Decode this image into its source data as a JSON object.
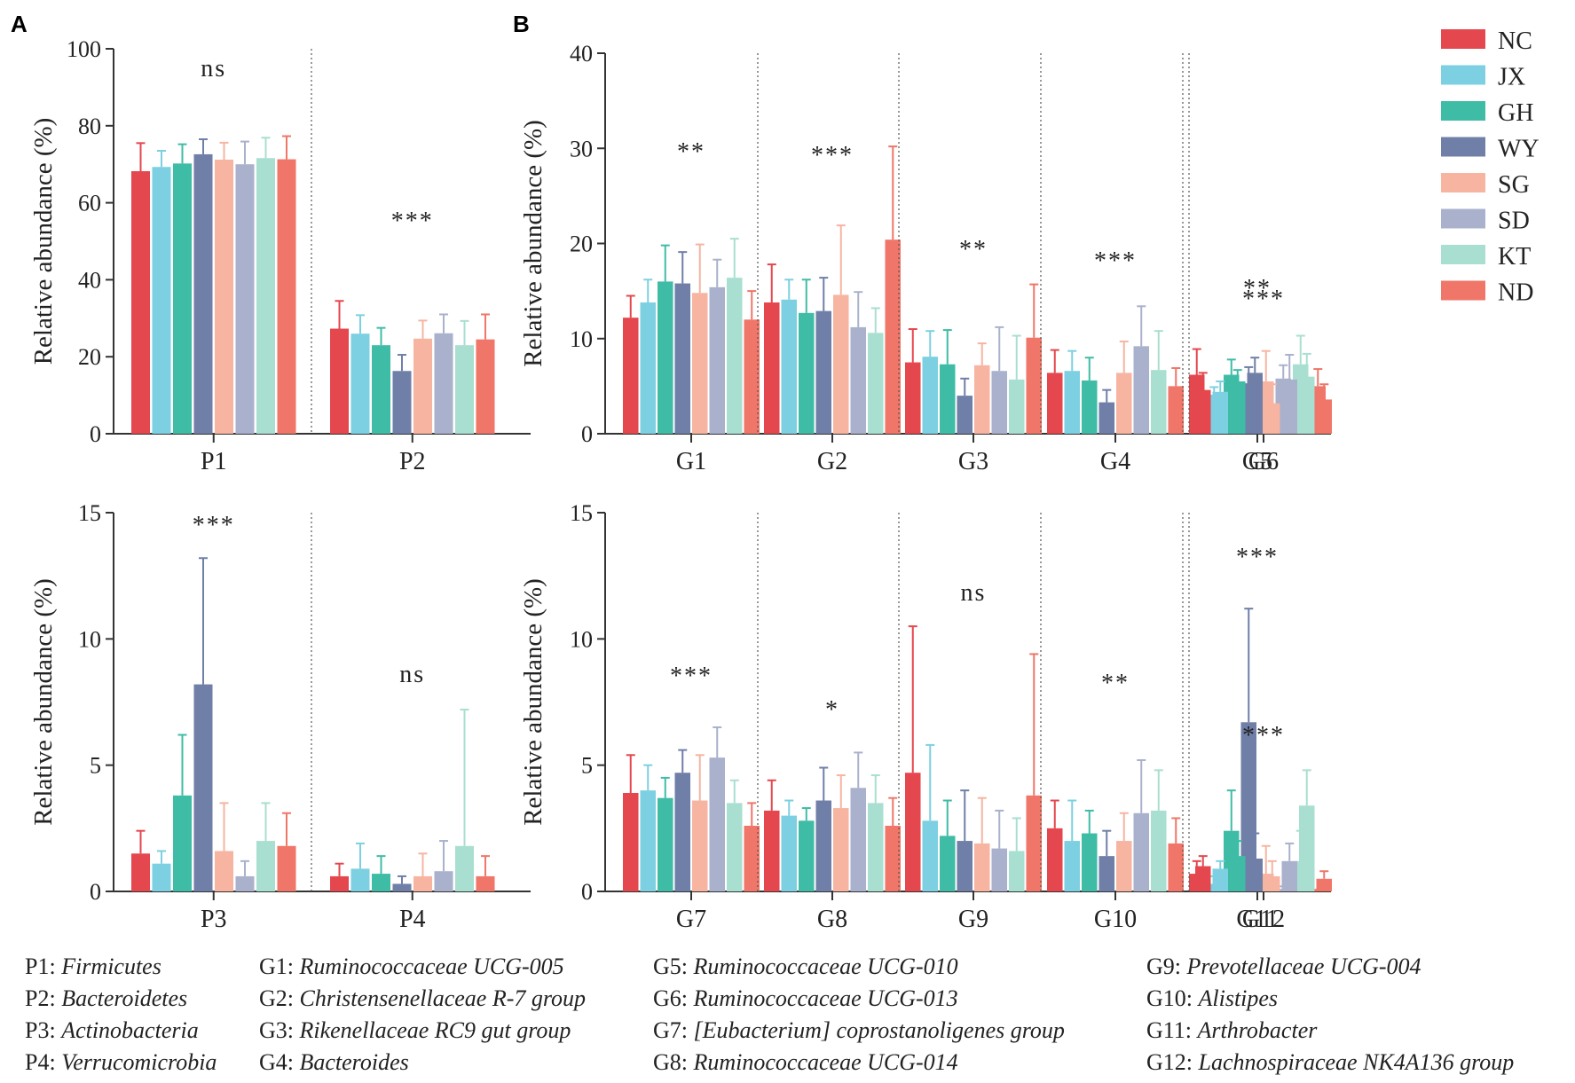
{
  "panel_letters": {
    "a": "A",
    "b": "B"
  },
  "legend": {
    "entries": [
      {
        "key": "NC",
        "color": "#e4474d"
      },
      {
        "key": "JX",
        "color": "#7dd0e1"
      },
      {
        "key": "GH",
        "color": "#3fbca6"
      },
      {
        "key": "WY",
        "color": "#6f7fa8"
      },
      {
        "key": "SG",
        "color": "#f7b4a1"
      },
      {
        "key": "SD",
        "color": "#a9b1cc"
      },
      {
        "key": "KT",
        "color": "#a9dfd0"
      },
      {
        "key": "ND",
        "color": "#ef7668"
      }
    ]
  },
  "chart_data": [
    {
      "id": "A-top",
      "type": "bar",
      "ylabel": "Relative abundance (%)",
      "ylim": [
        0,
        100
      ],
      "yticks": [
        "0",
        "20",
        "40",
        "60",
        "80",
        "100"
      ],
      "categories": [
        "P1",
        "P2"
      ],
      "significance": [
        "ns",
        "***"
      ],
      "series": [
        {
          "name": "NC",
          "values": [
            68.2,
            27.3
          ],
          "errors": [
            7.3,
            7.2
          ]
        },
        {
          "name": "JX",
          "values": [
            69.3,
            26.0
          ],
          "errors": [
            4.2,
            4.8
          ]
        },
        {
          "name": "GH",
          "values": [
            70.2,
            23.0
          ],
          "errors": [
            5.0,
            4.5
          ]
        },
        {
          "name": "WY",
          "values": [
            72.6,
            16.3
          ],
          "errors": [
            3.9,
            4.2
          ]
        },
        {
          "name": "SG",
          "values": [
            71.2,
            24.7
          ],
          "errors": [
            4.4,
            4.7
          ]
        },
        {
          "name": "SD",
          "values": [
            70.0,
            26.1
          ],
          "errors": [
            5.9,
            4.9
          ]
        },
        {
          "name": "KT",
          "values": [
            71.6,
            23.0
          ],
          "errors": [
            5.3,
            6.3
          ]
        },
        {
          "name": "ND",
          "values": [
            71.3,
            24.5
          ],
          "errors": [
            6.0,
            6.5
          ]
        }
      ]
    },
    {
      "id": "B-top",
      "type": "bar",
      "ylabel": "Relative abundance (%)",
      "ylim": [
        0,
        40
      ],
      "yticks": [
        "0",
        "10",
        "20",
        "30",
        "40"
      ],
      "categories": [
        "G1",
        "G2",
        "G3",
        "G4",
        "G5",
        "G6"
      ],
      "significance": [
        "**",
        "***",
        "**",
        "***",
        "**",
        "***"
      ],
      "series": [
        {
          "name": "NC",
          "values": [
            12.2,
            13.8,
            7.5,
            6.4,
            6.2,
            4.6
          ],
          "errors": [
            2.3,
            4.0,
            3.5,
            2.4,
            2.7,
            1.8
          ]
        },
        {
          "name": "JX",
          "values": [
            13.8,
            14.1,
            8.1,
            6.6,
            4.1,
            4.4
          ],
          "errors": [
            2.4,
            2.1,
            2.7,
            2.1,
            0.8,
            1.1
          ]
        },
        {
          "name": "GH",
          "values": [
            16.0,
            12.7,
            7.3,
            5.6,
            6.2,
            5.5
          ],
          "errors": [
            3.8,
            3.5,
            3.6,
            2.4,
            1.6,
            1.2
          ]
        },
        {
          "name": "WY",
          "values": [
            15.8,
            12.9,
            4.0,
            3.3,
            5.3,
            6.4
          ],
          "errors": [
            3.3,
            3.5,
            1.8,
            1.3,
            1.7,
            1.6
          ]
        },
        {
          "name": "SG",
          "values": [
            14.8,
            14.6,
            7.2,
            6.4,
            5.5,
            3.2
          ],
          "errors": [
            5.1,
            7.3,
            2.3,
            3.3,
            3.2,
            2.0
          ]
        },
        {
          "name": "SD",
          "values": [
            15.4,
            11.2,
            6.6,
            9.2,
            5.8,
            5.7
          ],
          "errors": [
            2.9,
            3.7,
            4.6,
            4.2,
            1.4,
            2.6
          ]
        },
        {
          "name": "KT",
          "values": [
            16.4,
            10.6,
            5.7,
            6.7,
            7.3,
            6.0
          ],
          "errors": [
            4.1,
            2.6,
            4.6,
            4.1,
            3.0,
            2.4
          ]
        },
        {
          "name": "ND",
          "values": [
            12.0,
            20.4,
            10.1,
            5.0,
            5.0,
            3.6
          ],
          "errors": [
            3.0,
            9.8,
            5.6,
            1.9,
            1.8,
            1.6
          ]
        }
      ]
    },
    {
      "id": "A-bottom",
      "type": "bar",
      "ylabel": "Relative abundance (%)",
      "ylim": [
        0,
        15
      ],
      "yticks": [
        "0",
        "5",
        "10",
        "15"
      ],
      "categories": [
        "P3",
        "P4"
      ],
      "significance": [
        "***",
        "ns"
      ],
      "series": [
        {
          "name": "NC",
          "values": [
            1.5,
            0.6
          ],
          "errors": [
            0.9,
            0.5
          ]
        },
        {
          "name": "JX",
          "values": [
            1.1,
            0.9
          ],
          "errors": [
            0.5,
            1.0
          ]
        },
        {
          "name": "GH",
          "values": [
            3.8,
            0.7
          ],
          "errors": [
            2.4,
            0.7
          ]
        },
        {
          "name": "WY",
          "values": [
            8.2,
            0.3
          ],
          "errors": [
            5.0,
            0.3
          ]
        },
        {
          "name": "SG",
          "values": [
            1.6,
            0.6
          ],
          "errors": [
            1.9,
            0.9
          ]
        },
        {
          "name": "SD",
          "values": [
            0.6,
            0.8
          ],
          "errors": [
            0.6,
            1.2
          ]
        },
        {
          "name": "KT",
          "values": [
            2.0,
            1.8
          ],
          "errors": [
            1.5,
            5.4
          ]
        },
        {
          "name": "ND",
          "values": [
            1.8,
            0.6
          ],
          "errors": [
            1.3,
            0.8
          ]
        }
      ]
    },
    {
      "id": "B-bottom",
      "type": "bar",
      "ylabel": "Relative abundance (%)",
      "ylim": [
        0,
        15
      ],
      "yticks": [
        "0",
        "5",
        "10",
        "15"
      ],
      "categories": [
        "G7",
        "G8",
        "G9",
        "G10",
        "G11",
        "G12"
      ],
      "significance": [
        "***",
        "*",
        "ns",
        "**",
        "***",
        "***"
      ],
      "series": [
        {
          "name": "NC",
          "values": [
            3.9,
            3.2,
            4.7,
            2.5,
            0.7,
            1.0
          ],
          "errors": [
            1.5,
            1.2,
            5.8,
            1.1,
            0.5,
            0.4
          ]
        },
        {
          "name": "JX",
          "values": [
            4.0,
            3.0,
            2.8,
            2.0,
            0.3,
            0.9
          ],
          "errors": [
            1.0,
            0.6,
            3.0,
            1.6,
            0.3,
            0.3
          ]
        },
        {
          "name": "GH",
          "values": [
            3.7,
            2.8,
            2.2,
            2.3,
            2.4,
            1.4
          ],
          "errors": [
            0.8,
            0.5,
            1.4,
            0.9,
            1.6,
            0.6
          ]
        },
        {
          "name": "WY",
          "values": [
            4.7,
            3.6,
            2.0,
            1.4,
            6.7,
            1.3
          ],
          "errors": [
            0.9,
            1.3,
            2.0,
            1.0,
            4.5,
            1.0
          ]
        },
        {
          "name": "SG",
          "values": [
            3.6,
            3.3,
            1.9,
            2.0,
            0.7,
            0.6
          ],
          "errors": [
            1.8,
            1.3,
            1.8,
            1.1,
            1.1,
            0.6
          ]
        },
        {
          "name": "SD",
          "values": [
            5.3,
            4.1,
            1.7,
            3.1,
            0.1,
            1.2
          ],
          "errors": [
            1.2,
            1.4,
            1.5,
            2.1,
            0.1,
            0.7
          ]
        },
        {
          "name": "KT",
          "values": [
            3.5,
            3.5,
            1.6,
            3.2,
            1.2,
            3.4
          ],
          "errors": [
            0.9,
            1.1,
            1.3,
            1.6,
            1.2,
            1.4
          ]
        },
        {
          "name": "ND",
          "values": [
            2.6,
            2.6,
            3.8,
            1.9,
            0.1,
            0.5
          ],
          "errors": [
            0.9,
            1.1,
            5.6,
            1.0,
            0.0,
            0.3
          ]
        }
      ]
    }
  ],
  "footnotes": [
    {
      "label": "P1: ",
      "name": "Firmicutes"
    },
    {
      "label": "P2: ",
      "name": "Bacteroidetes"
    },
    {
      "label": "P3: ",
      "name": "Actinobacteria"
    },
    {
      "label": "P4: ",
      "name": "Verrucomicrobia"
    },
    {
      "label": "G1: ",
      "name": "Ruminococcaceae UCG-005"
    },
    {
      "label": "G2: ",
      "name": "Christensenellaceae R-7 group"
    },
    {
      "label": "G3: ",
      "name": "Rikenellaceae RC9 gut group"
    },
    {
      "label": "G4: ",
      "name": "Bacteroides"
    },
    {
      "label": "G5: ",
      "name": "Ruminococcaceae UCG-010"
    },
    {
      "label": "G6: ",
      "name": "Ruminococcaceae UCG-013"
    },
    {
      "label": "G7: ",
      "name": "[Eubacterium] coprostanoligenes group"
    },
    {
      "label": "G8: ",
      "name": "Ruminococcaceae UCG-014"
    },
    {
      "label": "G9: ",
      "name": "Prevotellaceae UCG-004"
    },
    {
      "label": "G10: ",
      "name": "Alistipes"
    },
    {
      "label": "G11: ",
      "name": "Arthrobacter"
    },
    {
      "label": "G12: ",
      "name": "Lachnospiraceae NK4A136 group"
    }
  ]
}
